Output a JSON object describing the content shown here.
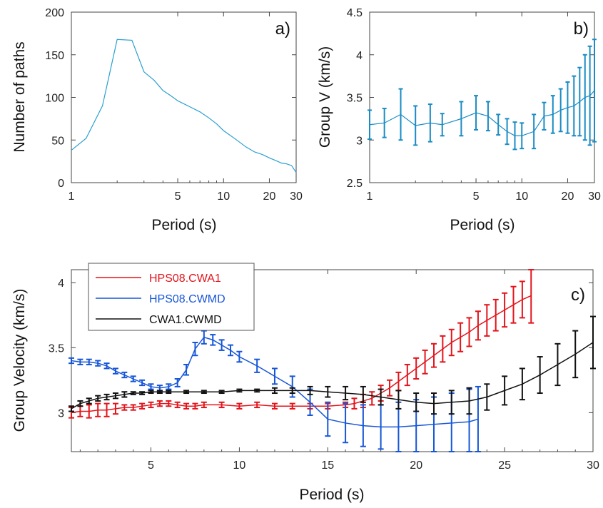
{
  "colors": {
    "panel_a_line": "#2a9fd0",
    "panel_b_line": "#1a8cc4",
    "hps08_cwa1": "#e3141b",
    "hps08_cwmd": "#1656d8",
    "cwa1_cwmd": "#111111"
  },
  "chart_data": [
    {
      "type": "line",
      "label": "a)",
      "xlabel": "Period (s)",
      "ylabel": "Number of paths",
      "xscale": "log",
      "xlim": [
        1,
        30
      ],
      "ylim": [
        0,
        200
      ],
      "xticks": [
        1,
        5,
        10,
        20,
        30
      ],
      "yticks": [
        0,
        50,
        100,
        150,
        200
      ],
      "grid": false,
      "series": [
        {
          "x": [
            1,
            1.25,
            1.6,
            2,
            2.5,
            3,
            3.5,
            4,
            4.5,
            5,
            6,
            7,
            8,
            9,
            10,
            12,
            14,
            16,
            18,
            20,
            22,
            24,
            26,
            28,
            30
          ],
          "values": [
            38,
            52,
            90,
            168,
            167,
            130,
            120,
            108,
            102,
            96,
            89,
            83,
            76,
            69,
            61,
            51,
            42,
            36,
            33,
            29,
            26,
            23,
            22,
            20,
            12
          ]
        }
      ]
    },
    {
      "type": "line",
      "label": "b)",
      "xlabel": "Period (s)",
      "ylabel": "Group V (km/s)",
      "xscale": "log",
      "xlim": [
        1,
        30
      ],
      "ylim": [
        2.5,
        4.5
      ],
      "xticks": [
        1,
        5,
        10,
        20,
        30
      ],
      "yticks": [
        2.5,
        3,
        3.5,
        4,
        4.5
      ],
      "grid": false,
      "series": [
        {
          "x": [
            1,
            1.25,
            1.6,
            2,
            2.5,
            3,
            4,
            5,
            6,
            7,
            8,
            9,
            10,
            12,
            14,
            16,
            18,
            20,
            22,
            24,
            26,
            28,
            30
          ],
          "values": [
            3.18,
            3.2,
            3.3,
            3.17,
            3.2,
            3.18,
            3.25,
            3.32,
            3.28,
            3.18,
            3.1,
            3.05,
            3.05,
            3.1,
            3.28,
            3.3,
            3.35,
            3.38,
            3.4,
            3.45,
            3.5,
            3.52,
            3.58
          ],
          "err": [
            0.17,
            0.17,
            0.3,
            0.23,
            0.22,
            0.13,
            0.2,
            0.2,
            0.17,
            0.12,
            0.15,
            0.16,
            0.15,
            0.2,
            0.16,
            0.22,
            0.25,
            0.3,
            0.35,
            0.4,
            0.5,
            0.58,
            0.6
          ]
        }
      ]
    },
    {
      "type": "line",
      "label": "c)",
      "xlabel": "Period (s)",
      "ylabel": "Group Velocity (km/s)",
      "xscale": "linear",
      "xlim": [
        0.5,
        30
      ],
      "ylim": [
        2.7,
        4.1
      ],
      "xticks": [
        5,
        10,
        15,
        20,
        25,
        30
      ],
      "yticks": [
        3,
        3.5,
        4
      ],
      "grid": false,
      "legend_placement": "top-left",
      "series": [
        {
          "name": "HPS08.CWA1",
          "x": [
            0.5,
            1,
            1.5,
            2,
            2.5,
            3,
            3.5,
            4,
            4.5,
            5,
            5.5,
            6,
            6.5,
            7,
            7.5,
            8,
            9,
            10,
            11,
            12,
            13,
            14,
            15,
            16,
            16.5,
            17,
            17.5,
            18,
            18.5,
            19,
            19.5,
            20,
            20.5,
            21,
            21.5,
            22,
            22.5,
            23,
            23.5,
            24,
            24.5,
            25,
            25.5,
            26,
            26.5
          ],
          "values": [
            3.0,
            3.01,
            3.01,
            3.02,
            3.02,
            3.03,
            3.04,
            3.04,
            3.05,
            3.06,
            3.07,
            3.07,
            3.06,
            3.05,
            3.05,
            3.06,
            3.06,
            3.05,
            3.06,
            3.05,
            3.05,
            3.05,
            3.05,
            3.06,
            3.07,
            3.09,
            3.11,
            3.15,
            3.19,
            3.24,
            3.29,
            3.34,
            3.39,
            3.44,
            3.49,
            3.54,
            3.58,
            3.62,
            3.67,
            3.71,
            3.75,
            3.79,
            3.83,
            3.87,
            3.9
          ],
          "err": [
            0.04,
            0.04,
            0.05,
            0.05,
            0.05,
            0.04,
            0.02,
            0.02,
            0.02,
            0.02,
            0.02,
            0.02,
            0.02,
            0.02,
            0.02,
            0.02,
            0.02,
            0.02,
            0.02,
            0.02,
            0.02,
            0.02,
            0.02,
            0.02,
            0.04,
            0.05,
            0.05,
            0.06,
            0.06,
            0.07,
            0.08,
            0.08,
            0.09,
            0.09,
            0.1,
            0.1,
            0.11,
            0.11,
            0.11,
            0.12,
            0.12,
            0.13,
            0.14,
            0.14,
            0.21
          ]
        },
        {
          "name": "HPS08.CWMD",
          "x": [
            0.5,
            1,
            1.5,
            2,
            2.5,
            3,
            3.5,
            4,
            4.5,
            5,
            5.5,
            6,
            6.5,
            7,
            7.5,
            8,
            8.5,
            9,
            9.5,
            10,
            11,
            12,
            13,
            14,
            15,
            16,
            17,
            18,
            19,
            20,
            21,
            22,
            23,
            23.5
          ],
          "values": [
            3.4,
            3.39,
            3.39,
            3.38,
            3.36,
            3.32,
            3.29,
            3.26,
            3.23,
            3.2,
            3.19,
            3.2,
            3.23,
            3.33,
            3.49,
            3.58,
            3.56,
            3.52,
            3.48,
            3.43,
            3.36,
            3.28,
            3.2,
            3.08,
            2.95,
            2.92,
            2.9,
            2.89,
            2.89,
            2.9,
            2.91,
            2.92,
            2.93,
            2.95
          ],
          "err": [
            0.02,
            0.02,
            0.02,
            0.02,
            0.02,
            0.02,
            0.02,
            0.02,
            0.02,
            0.02,
            0.02,
            0.02,
            0.03,
            0.04,
            0.05,
            0.05,
            0.04,
            0.04,
            0.04,
            0.04,
            0.05,
            0.06,
            0.08,
            0.1,
            0.13,
            0.15,
            0.16,
            0.17,
            0.19,
            0.2,
            0.21,
            0.23,
            0.25,
            0.25
          ]
        },
        {
          "name": "CWA1.CWMD",
          "x": [
            0.5,
            1,
            1.5,
            2,
            2.5,
            3,
            3.5,
            4,
            4.5,
            5,
            5.5,
            6,
            7,
            8,
            9,
            10,
            11,
            12,
            13,
            14,
            15,
            16,
            17,
            18,
            19,
            20,
            21,
            22,
            23,
            24,
            25,
            26,
            27,
            28,
            29,
            30
          ],
          "values": [
            3.03,
            3.07,
            3.09,
            3.11,
            3.12,
            3.13,
            3.14,
            3.15,
            3.15,
            3.16,
            3.16,
            3.16,
            3.16,
            3.16,
            3.16,
            3.17,
            3.17,
            3.17,
            3.17,
            3.17,
            3.16,
            3.15,
            3.14,
            3.12,
            3.1,
            3.08,
            3.07,
            3.08,
            3.09,
            3.12,
            3.17,
            3.22,
            3.29,
            3.37,
            3.45,
            3.54
          ],
          "err": [
            0.02,
            0.02,
            0.02,
            0.02,
            0.02,
            0.02,
            0.02,
            0.01,
            0.01,
            0.01,
            0.01,
            0.01,
            0.01,
            0.01,
            0.01,
            0.01,
            0.01,
            0.02,
            0.02,
            0.03,
            0.04,
            0.05,
            0.06,
            0.06,
            0.07,
            0.07,
            0.08,
            0.09,
            0.1,
            0.1,
            0.11,
            0.12,
            0.14,
            0.16,
            0.18,
            0.2
          ]
        }
      ]
    }
  ]
}
